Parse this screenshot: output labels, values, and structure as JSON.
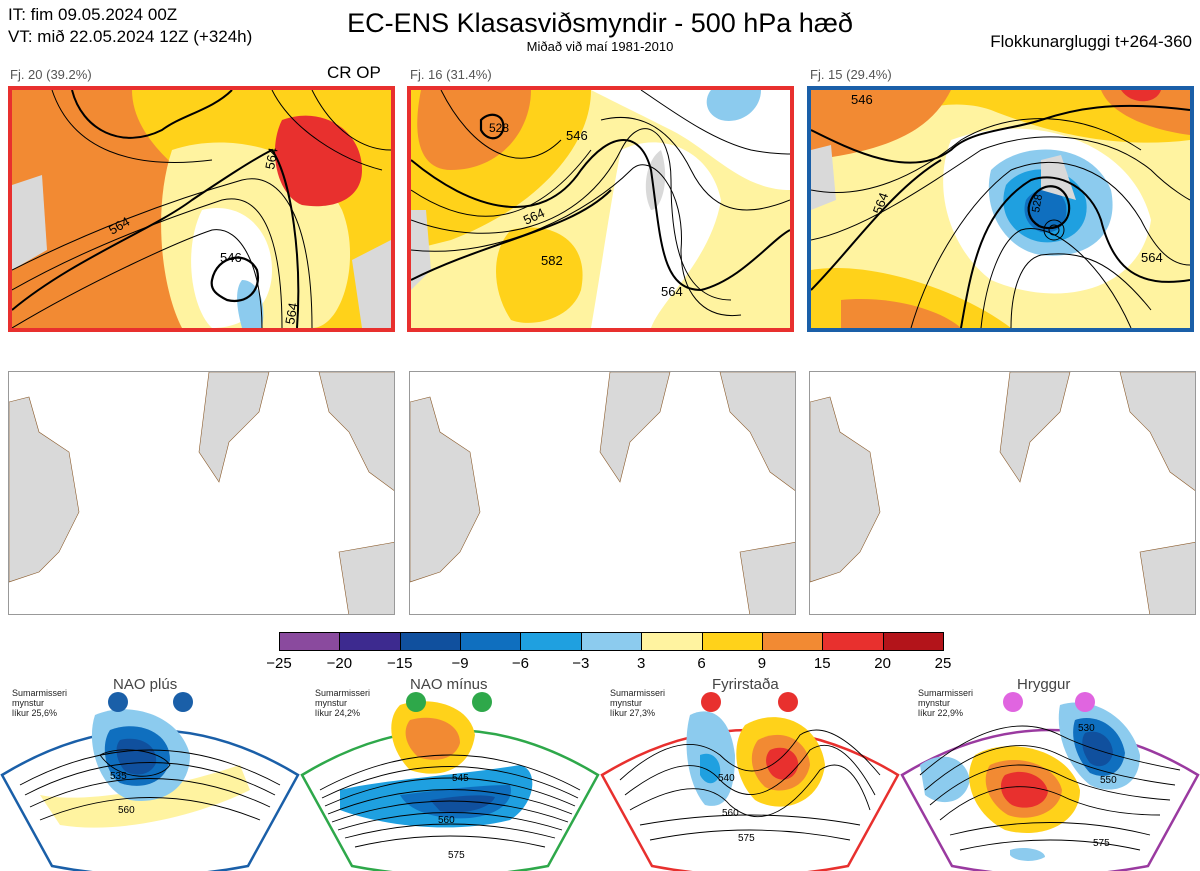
{
  "header": {
    "it_line": "IT: fim 09.05.2024 00Z",
    "vt_line": "VT: mið 22.05.2024 12Z  (+324h)",
    "title": "EC-ENS Klasasviðsmyndir - 500 hPa hæð",
    "subtitle": "Miðað við maí 1981-2010",
    "window": "Flokkunargluggi t+264-360"
  },
  "clusters": [
    {
      "label": "Fj. 20 (39.2%)",
      "tag": "CR OP",
      "border_color": "#e8302e",
      "contours": [
        "564",
        "546",
        "564",
        "564"
      ]
    },
    {
      "label": "Fj. 16 (31.4%)",
      "tag": "",
      "border_color": "#e8302e",
      "contours": [
        "546",
        "564",
        "582",
        "564",
        "528"
      ]
    },
    {
      "label": "Fj. 15 (29.4%)",
      "tag": "",
      "border_color": "#1a5fa8",
      "contours": [
        "546",
        "564",
        "528",
        "564"
      ]
    }
  ],
  "colorbar": {
    "ticks": [
      "−25",
      "−20",
      "−15",
      "−9",
      "−6",
      "−3",
      "3",
      "6",
      "9",
      "15",
      "20",
      "25"
    ],
    "colors": [
      "#8a4a9e",
      "#3d2a8f",
      "#10509e",
      "#0f6fbf",
      "#1fa0e0",
      "#8ccbee",
      "#ffffff",
      "#fff3a0",
      "#ffd21a",
      "#f28a33",
      "#e8302e",
      "#b3141a"
    ]
  },
  "regimes": [
    {
      "name": "NAO plús",
      "note": [
        "Sumarmisseri",
        "mynstur",
        "líkur 25,6%"
      ],
      "color": "#1a5fa8",
      "contours": [
        "535",
        "560"
      ]
    },
    {
      "name": "NAO mínus",
      "note": [
        "Sumarmisseri",
        "mynstur",
        "líkur 24,2%"
      ],
      "color": "#2ea84a",
      "contours": [
        "545",
        "560",
        "575"
      ]
    },
    {
      "name": "Fyrirstaða",
      "note": [
        "Sumarmisseri",
        "mynstur",
        "líkur 27,3%"
      ],
      "color": "#e8302e",
      "contours": [
        "540",
        "560",
        "575"
      ]
    },
    {
      "name": "Hryggur",
      "note": [
        "Sumarmisseri",
        "mynstur",
        "líkur 22,9%"
      ],
      "color": "#e065e0",
      "contours": [
        "530",
        "550",
        "575"
      ]
    }
  ]
}
